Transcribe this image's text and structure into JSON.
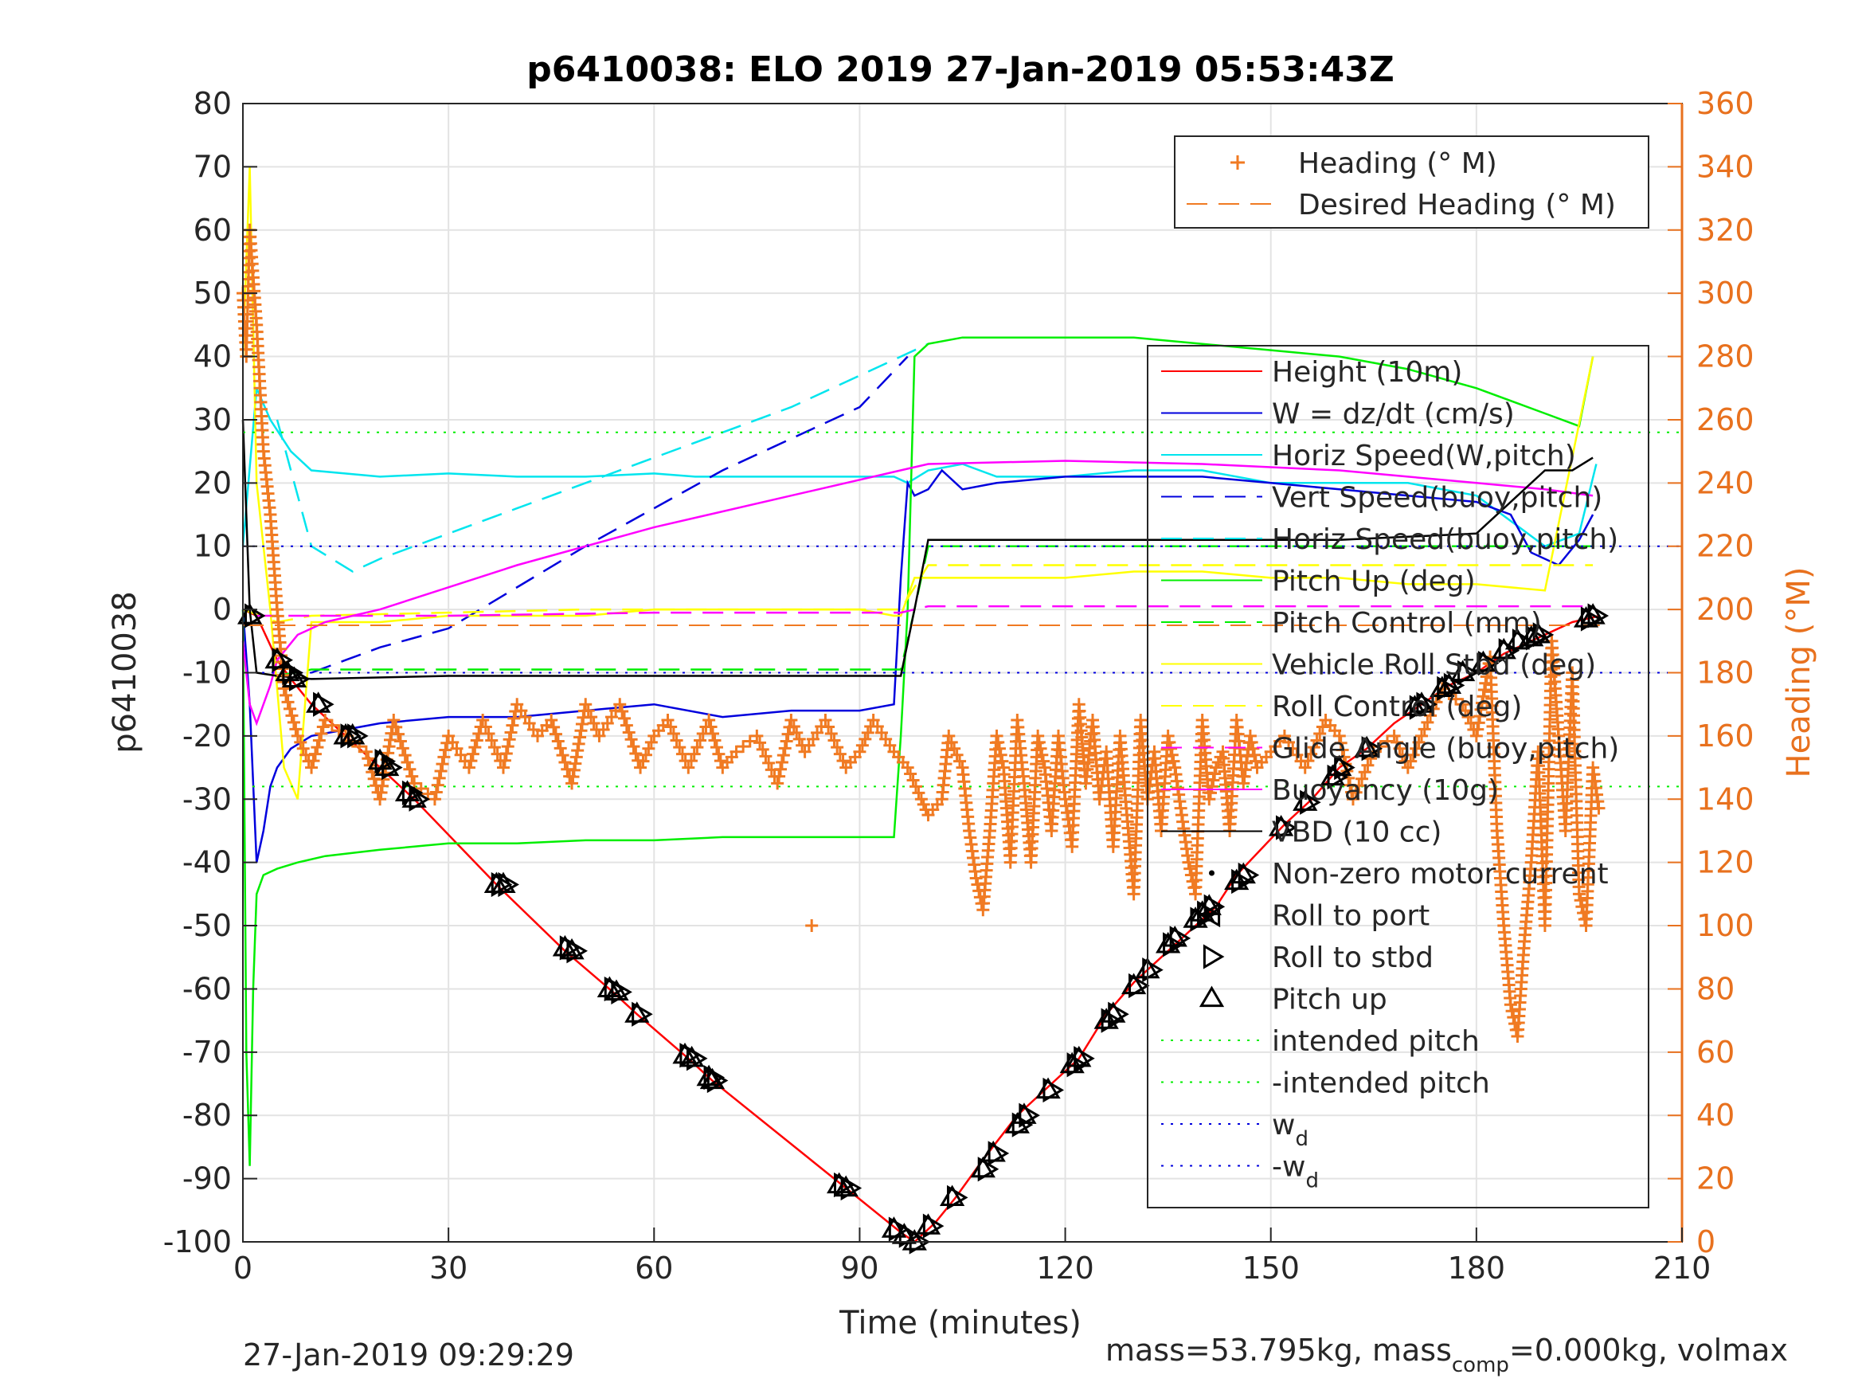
{
  "chart_data": {
    "type": "line",
    "title": "p6410038: ELO 2019 27-Jan-2019 05:53:43Z",
    "xlabel": "Time (minutes)",
    "ylabel": "p6410038",
    "y2label": "Heading (°M)",
    "xlim": [
      0,
      210
    ],
    "ylim": [
      -100,
      80
    ],
    "y2lim": [
      0,
      360
    ],
    "xticks": [
      0,
      30,
      60,
      90,
      120,
      150,
      180,
      210
    ],
    "yticks": [
      -100,
      -90,
      -80,
      -70,
      -60,
      -50,
      -40,
      -30,
      -20,
      -10,
      0,
      10,
      20,
      30,
      40,
      50,
      60,
      70,
      80
    ],
    "y2ticks": [
      0,
      20,
      40,
      60,
      80,
      100,
      120,
      140,
      160,
      180,
      200,
      220,
      240,
      260,
      280,
      300,
      320,
      340,
      360
    ],
    "grid": true,
    "footer_left": "27-Jan-2019 09:29:29",
    "footer_right": {
      "p1": "mass=53.795kg, mass",
      "sub": "comp",
      "p2": "=0.000kg, volmax"
    },
    "legend_heading": [
      {
        "name": "Heading (° M)",
        "color": "#f07a22",
        "style": "marker-plus"
      },
      {
        "name": "Desired Heading (° M)",
        "color": "#f07a22",
        "style": "dashed"
      }
    ],
    "legend_main": [
      {
        "name": "Height (10m)",
        "color": "#ff0000",
        "style": "solid"
      },
      {
        "name": "W = dz/dt (cm/s)",
        "color": "#0000dd",
        "style": "solid"
      },
      {
        "name": "Horiz Speed(W,pitch)",
        "color": "#00e5ee",
        "style": "solid"
      },
      {
        "name": "Vert Speed(buoy,pitch)",
        "color": "#0000dd",
        "style": "dashed"
      },
      {
        "name": "Horiz Speed(buoy,pitch)",
        "color": "#00e5ee",
        "style": "dashed"
      },
      {
        "name": "Pitch Up (deg)",
        "color": "#00ee00",
        "style": "solid"
      },
      {
        "name": "Pitch Control (mm)",
        "color": "#00ee00",
        "style": "dashed"
      },
      {
        "name": "Vehicle Roll Stbd (deg)",
        "color": "#ffff00",
        "style": "solid"
      },
      {
        "name": "Roll Control (deg)",
        "color": "#ffff00",
        "style": "dashed"
      },
      {
        "name": "Glide Angle (buoy,pitch)",
        "color": "#ff00ff",
        "style": "dashed"
      },
      {
        "name": "Buoyancy (10g)",
        "color": "#ff00ff",
        "style": "solid"
      },
      {
        "name": "VBD (10 cc)",
        "color": "#000000",
        "style": "solid"
      },
      {
        "name": "Non-zero motor current",
        "color": "#000000",
        "style": "dot"
      },
      {
        "name": "Roll to port",
        "color": "#000000",
        "style": "marker-left"
      },
      {
        "name": "Roll to stbd",
        "color": "#000000",
        "style": "marker-right"
      },
      {
        "name": "Pitch up",
        "color": "#000000",
        "style": "marker-up"
      },
      {
        "name": "intended pitch",
        "color": "#00ee00",
        "style": "dotted"
      },
      {
        "name": "-intended pitch",
        "color": "#00ee00",
        "style": "dotted"
      },
      {
        "name": "w",
        "sub": "d",
        "color": "#0000dd",
        "style": "dotted"
      },
      {
        "name": "-w",
        "sub": "d",
        "color": "#0000dd",
        "style": "dotted"
      }
    ],
    "series": [
      {
        "name": "Height (10m)",
        "color": "#ff0000",
        "style": "solid",
        "x": [
          0,
          2,
          5,
          7,
          10,
          15,
          20,
          25,
          37,
          47,
          54,
          57.5,
          65,
          68.5,
          88,
          96,
          98,
          101,
          104,
          108,
          113,
          118,
          122,
          126,
          130,
          134,
          138,
          142,
          145,
          152,
          156,
          160,
          164,
          168,
          172,
          176,
          180,
          184,
          188,
          194,
          198
        ],
        "y": [
          0,
          -1,
          -8,
          -11,
          -15,
          -20,
          -25,
          -30,
          -43.5,
          -54,
          -60.5,
          -64,
          -71,
          -74.5,
          -91.5,
          -98.5,
          -100,
          -97,
          -93,
          -87,
          -80,
          -75,
          -71,
          -64,
          -59,
          -55,
          -51,
          -47,
          -42,
          -34,
          -30,
          -25,
          -22,
          -18,
          -15,
          -12,
          -10,
          -7,
          -5,
          -2,
          -1
        ]
      },
      {
        "name": "Pitch up",
        "color": "#000000",
        "style": "marker-up",
        "x": [
          1,
          5,
          6.5,
          7.5,
          11,
          15,
          16,
          20,
          21,
          24,
          25,
          37,
          38,
          47,
          48,
          53.5,
          54.5,
          57.5,
          64.5,
          65.5,
          68,
          68.5,
          87,
          88,
          95,
          96.5,
          98,
          100,
          103.5,
          108,
          109.5,
          113,
          114,
          117.5,
          121,
          122,
          126,
          127,
          130,
          132,
          135,
          136,
          139,
          140,
          141,
          145,
          146,
          151.5,
          155,
          159,
          160,
          164,
          171,
          172,
          175,
          176,
          178,
          181,
          184,
          186,
          188,
          189,
          196,
          197
        ],
        "y": [
          -1,
          -8,
          -10,
          -11,
          -15,
          -20,
          -20,
          -24,
          -25,
          -29,
          -30,
          -43.5,
          -43.5,
          -53.5,
          -54,
          -60,
          -60.5,
          -64,
          -70.5,
          -71,
          -74,
          -74.5,
          -91,
          -91.5,
          -98,
          -99,
          -100,
          -97.5,
          -93,
          -88.5,
          -86,
          -81.5,
          -80,
          -76,
          -72,
          -71,
          -65,
          -64,
          -59.5,
          -57,
          -53,
          -52,
          -49,
          -48,
          -47,
          -43,
          -42,
          -34.5,
          -30.5,
          -26.5,
          -25,
          -22,
          -15.5,
          -15,
          -12.5,
          -12,
          -10,
          -8.5,
          -6.5,
          -5,
          -4.5,
          -4,
          -1.5,
          -1
        ]
      },
      {
        "name": "Horiz Speed(W,pitch)",
        "color": "#00e5ee",
        "style": "solid",
        "x": [
          0,
          2,
          4,
          7,
          10,
          20,
          30,
          40,
          50,
          60,
          66,
          72,
          80,
          90,
          95,
          97,
          100,
          105,
          110,
          120,
          130,
          140,
          150,
          160,
          170,
          180,
          185,
          190,
          195,
          197.5
        ],
        "y": [
          10,
          35,
          30,
          25,
          22,
          21,
          21.5,
          21,
          21,
          21.5,
          21,
          21,
          21,
          21,
          21,
          20,
          22,
          23,
          21,
          21,
          22,
          22,
          20,
          20,
          20,
          18,
          14,
          10,
          12,
          23
        ]
      },
      {
        "name": "Horiz Speed(buoy,pitch)",
        "color": "#00e5ee",
        "style": "dashed",
        "x": [
          5,
          10,
          16,
          20,
          40,
          60,
          80,
          96,
          100
        ],
        "y": [
          30,
          10,
          6,
          8,
          16,
          24,
          32,
          40,
          42
        ]
      },
      {
        "name": "Vert Speed(buoy,pitch)",
        "color": "#0000dd",
        "style": "dashed",
        "x": [
          10,
          15,
          20,
          30,
          50,
          70,
          90,
          97
        ],
        "y": [
          -10,
          -8,
          -6,
          -3,
          10,
          22,
          32,
          40
        ]
      },
      {
        "name": "W = dz/dt (cm/s)",
        "color": "#0000dd",
        "style": "solid",
        "x": [
          0,
          1,
          2,
          3,
          4,
          5,
          7,
          10,
          15,
          20,
          30,
          40,
          50,
          60,
          70,
          80,
          90,
          95,
          96,
          97,
          98,
          100,
          102,
          105,
          110,
          120,
          130,
          140,
          150,
          160,
          170,
          180,
          185,
          188,
          192,
          195,
          197
        ],
        "y": [
          0,
          -15,
          -40,
          -35,
          -28,
          -25,
          -22,
          -20,
          -19,
          -18,
          -17,
          -17,
          -16,
          -15,
          -17,
          -16,
          -16,
          -15,
          5,
          20,
          18,
          19,
          22,
          19,
          20,
          21,
          21,
          21,
          20,
          19,
          18,
          17,
          15,
          9,
          7,
          11,
          15
        ]
      },
      {
        "name": "Pitch Up (deg)",
        "color": "#00ee00",
        "style": "solid",
        "x": [
          0,
          0.5,
          1,
          1.5,
          2,
          3,
          5,
          8,
          12,
          20,
          30,
          40,
          50,
          60,
          70,
          80,
          90,
          95,
          96,
          97,
          98,
          100,
          105,
          110,
          120,
          130,
          140,
          150,
          160,
          170,
          180,
          190,
          195,
          197
        ],
        "y": [
          0,
          -70,
          -88,
          -60,
          -45,
          -42,
          -41,
          -40,
          -39,
          -38,
          -37,
          -37,
          -36.5,
          -36.5,
          -36,
          -36,
          -36,
          -36,
          -20,
          0,
          40,
          42,
          43,
          43,
          43,
          43,
          42,
          41,
          40,
          38,
          35,
          31,
          29,
          40
        ]
      },
      {
        "name": "Pitch Control (mm)",
        "color": "#00ee00",
        "style": "dashed",
        "x": [
          5,
          10,
          30,
          60,
          96,
          98,
          100,
          130,
          160,
          190,
          197
        ],
        "y": [
          -10.5,
          -9.5,
          -9.5,
          -9.5,
          -9.5,
          0,
          10,
          10,
          10,
          10,
          10
        ]
      },
      {
        "name": "Vehicle Roll Stbd (deg)",
        "color": "#ffff00",
        "style": "solid",
        "x": [
          0,
          1,
          2,
          4,
          6,
          8,
          10,
          20,
          30,
          40,
          50,
          60,
          70,
          80,
          90,
          95,
          96,
          98,
          100,
          110,
          120,
          130,
          140,
          150,
          160,
          170,
          180,
          190,
          197
        ],
        "y": [
          40,
          70,
          20,
          0,
          -25,
          -30,
          -2,
          -2,
          -1,
          -1,
          -1,
          0,
          0,
          0,
          0,
          -1,
          -1,
          5,
          5,
          5,
          5,
          6,
          6,
          5,
          5,
          4,
          4,
          3,
          40
        ]
      },
      {
        "name": "Roll Control (deg)",
        "color": "#ffff00",
        "style": "dashed",
        "x": [
          0,
          5,
          10,
          50,
          96,
          100,
          150,
          197
        ],
        "y": [
          0,
          -2,
          -1,
          0,
          0,
          7,
          7,
          7
        ]
      },
      {
        "name": "Glide Angle (buoy,pitch)",
        "color": "#ff00ff",
        "style": "dashed",
        "x": [
          2,
          10,
          30,
          60,
          96,
          100,
          130,
          160,
          197
        ],
        "y": [
          -1,
          -1,
          -1,
          -0.5,
          -0.5,
          0.5,
          0.5,
          0.5,
          0.5
        ]
      },
      {
        "name": "Buoyancy (10g)",
        "color": "#ff00ff",
        "style": "solid",
        "x": [
          0,
          1,
          2,
          3,
          4,
          5,
          8,
          12,
          20,
          40,
          60,
          80,
          100,
          120,
          140,
          160,
          170,
          180,
          190,
          197
        ],
        "y": [
          -5,
          -15,
          -18,
          -15,
          -12,
          -8,
          -4,
          -2,
          0,
          7,
          13,
          18,
          23,
          23.5,
          23,
          22,
          21,
          20,
          19,
          18
        ]
      },
      {
        "name": "VBD (10 cc)",
        "color": "#000000",
        "style": "solid",
        "x": [
          0,
          1,
          2,
          5,
          10,
          30,
          60,
          90,
          96,
          98,
          100,
          120,
          140,
          160,
          180,
          190,
          194,
          197
        ],
        "y": [
          30,
          0,
          -10,
          -10.5,
          -11,
          -10.5,
          -10.5,
          -10.5,
          -10.5,
          0,
          11,
          11,
          11,
          11,
          12,
          22,
          22,
          24
        ]
      },
      {
        "name": "intended pitch",
        "color": "#00ee00",
        "style": "dotted",
        "x": [
          0,
          210
        ],
        "y": [
          28,
          28
        ]
      },
      {
        "name": "-intended pitch",
        "color": "#00ee00",
        "style": "dotted",
        "x": [
          0,
          210
        ],
        "y": [
          -28,
          -28
        ]
      },
      {
        "name": "w_d",
        "color": "#0000dd",
        "style": "dotted",
        "x": [
          0,
          210
        ],
        "y": [
          10,
          10
        ]
      },
      {
        "name": "-w_d",
        "color": "#0000dd",
        "style": "dotted",
        "x": [
          0,
          210
        ],
        "y": [
          -10,
          -10
        ]
      }
    ],
    "heading": {
      "name": "Heading (° M)",
      "color": "#f07a22",
      "axis": "right",
      "x": [
        0,
        0.5,
        1,
        2,
        3,
        4,
        5,
        6,
        8,
        10,
        12,
        15,
        18,
        20,
        22,
        25,
        28,
        30,
        33,
        35,
        38,
        40,
        43,
        45,
        48,
        50,
        52,
        55,
        58,
        60,
        62,
        65,
        68,
        70,
        72,
        75,
        78,
        80,
        82,
        85,
        88,
        90,
        92,
        95,
        97,
        99,
        100,
        102,
        103,
        105,
        106,
        107,
        108,
        109,
        110,
        111,
        112,
        113,
        114,
        115,
        116,
        117,
        118,
        119,
        120,
        121,
        122,
        123,
        124,
        125,
        126,
        127,
        128,
        129,
        130,
        131,
        132,
        133,
        134,
        135,
        136,
        137,
        138,
        139,
        140,
        141,
        142,
        143,
        144,
        145,
        146,
        147,
        148,
        150,
        152,
        155,
        158,
        160,
        162,
        165,
        168,
        170,
        172,
        175,
        178,
        180,
        182,
        183,
        184,
        185,
        186,
        187,
        188,
        189,
        190,
        191,
        192,
        193,
        194,
        195,
        196,
        197,
        198
      ],
      "y": [
        300,
        280,
        320,
        290,
        250,
        230,
        200,
        175,
        160,
        150,
        165,
        160,
        155,
        140,
        165,
        145,
        140,
        160,
        150,
        165,
        150,
        170,
        160,
        165,
        145,
        170,
        160,
        170,
        150,
        160,
        165,
        150,
        165,
        150,
        155,
        160,
        145,
        165,
        155,
        165,
        150,
        155,
        165,
        155,
        150,
        140,
        135,
        140,
        160,
        150,
        130,
        115,
        105,
        130,
        160,
        150,
        120,
        165,
        145,
        120,
        160,
        150,
        130,
        160,
        140,
        125,
        170,
        145,
        165,
        140,
        155,
        125,
        160,
        135,
        110,
        165,
        140,
        155,
        130,
        160,
        150,
        135,
        120,
        110,
        165,
        140,
        150,
        155,
        130,
        165,
        145,
        160,
        150,
        155,
        160,
        150,
        165,
        160,
        140,
        155,
        160,
        150,
        160,
        175,
        170,
        160,
        185,
        130,
        100,
        75,
        65,
        95,
        120,
        155,
        100,
        190,
        160,
        130,
        180,
        110,
        100,
        150,
        135
      ]
    },
    "heading_outliers": {
      "x": [
        83
      ],
      "y": [
        100
      ]
    },
    "desired_heading": {
      "name": "Desired Heading (° M)",
      "x": [
        0,
        198
      ],
      "y": [
        195,
        195
      ]
    }
  }
}
